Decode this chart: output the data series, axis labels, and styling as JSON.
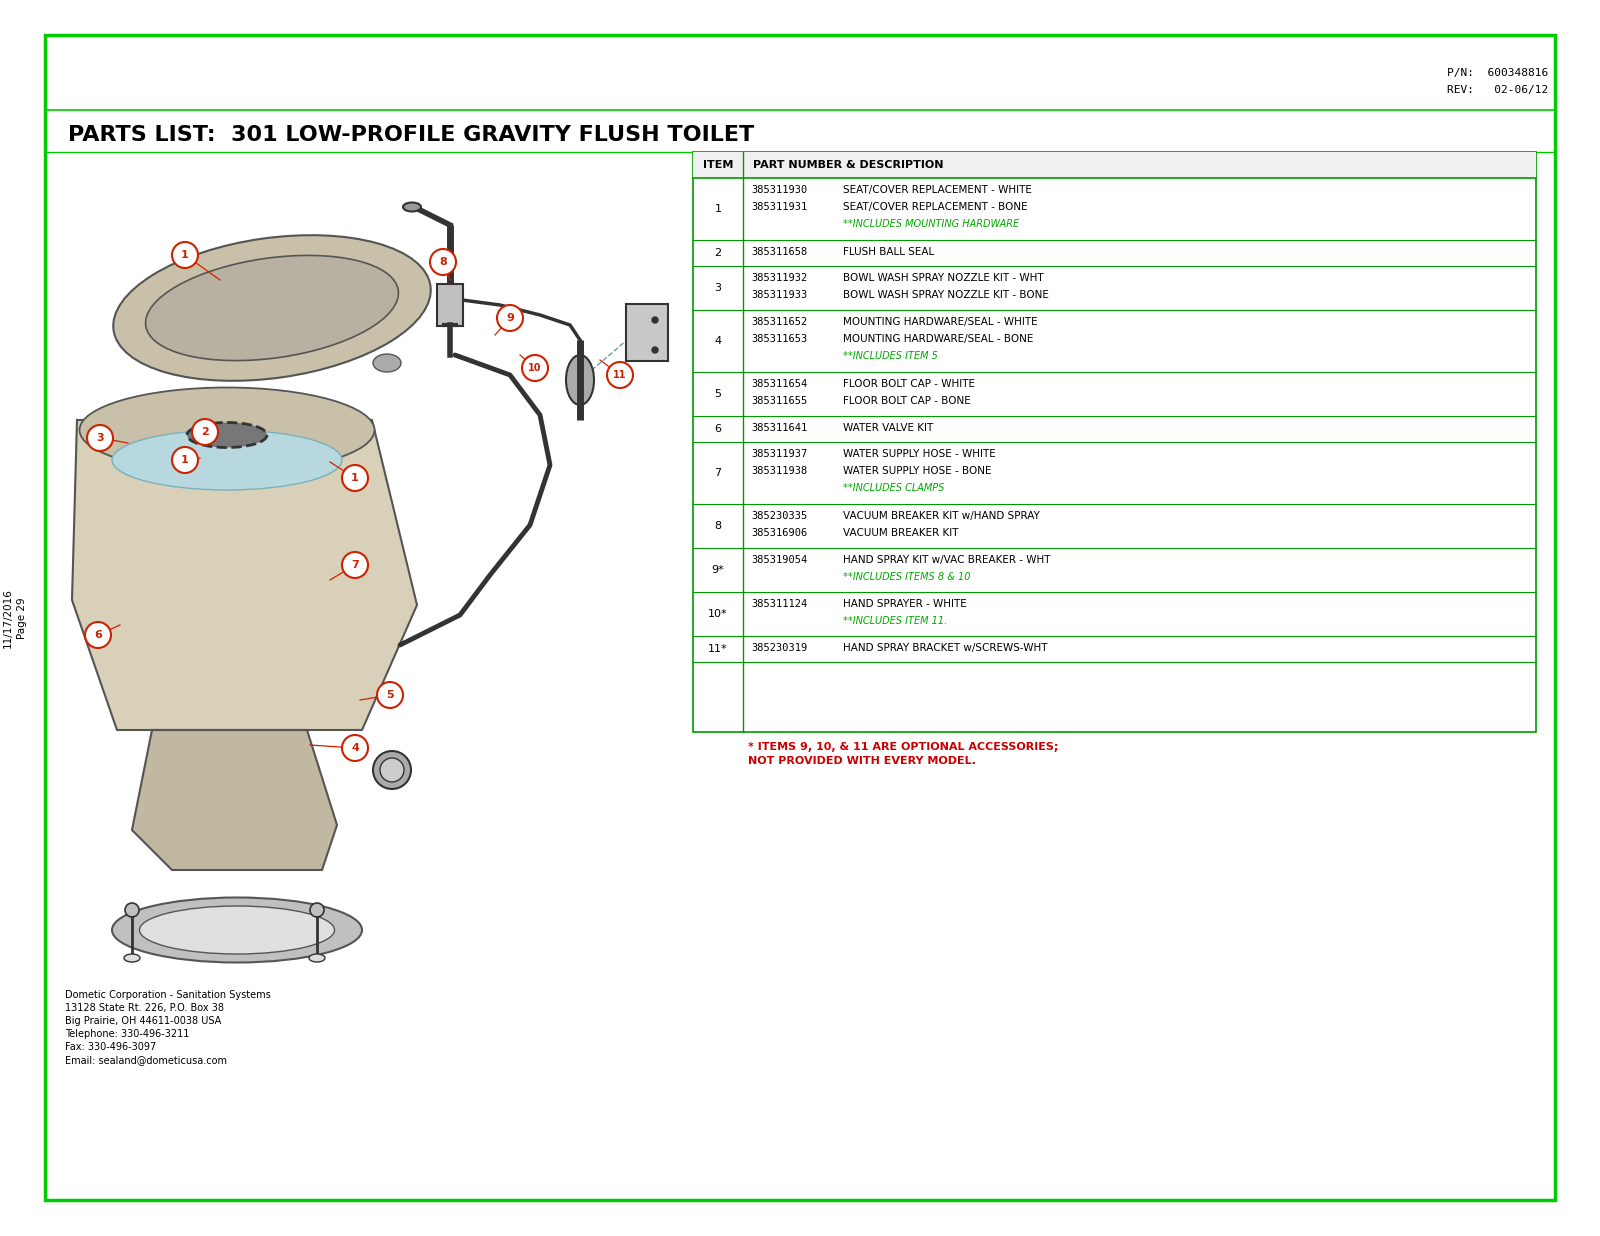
{
  "title": "PARTS LIST:  301 LOW-PROFILE GRAVITY FLUSH TOILET",
  "pn": "P/N:  600348816",
  "rev": "REV:   02-06/12",
  "page_label": "Page 29",
  "date_label": "11/17/2016",
  "company_info": [
    "Dometic Corporation - Sanitation Systems",
    "13128 State Rt. 226, P.O. Box 38",
    "Big Prairie, OH 44611-0038 USA",
    "Telephone: 330-496-3211",
    "Fax: 330-496-3097",
    "Email: sealand@dometicusa.com"
  ],
  "rows": [
    {
      "item": "1",
      "entries": [
        {
          "pn": "385311930",
          "desc": "SEAT/COVER REPLACEMENT - WHITE"
        },
        {
          "pn": "385311931",
          "desc": "SEAT/COVER REPLACEMENT - BONE"
        }
      ],
      "note": "**INCLUDES MOUNTING HARDWARE"
    },
    {
      "item": "2",
      "entries": [
        {
          "pn": "385311658",
          "desc": "FLUSH BALL SEAL"
        }
      ],
      "note": null
    },
    {
      "item": "3",
      "entries": [
        {
          "pn": "385311932",
          "desc": "BOWL WASH SPRAY NOZZLE KIT - WHT"
        },
        {
          "pn": "385311933",
          "desc": "BOWL WASH SPRAY NOZZLE KIT - BONE"
        }
      ],
      "note": null
    },
    {
      "item": "4",
      "entries": [
        {
          "pn": "385311652",
          "desc": "MOUNTING HARDWARE/SEAL - WHITE"
        },
        {
          "pn": "385311653",
          "desc": "MOUNTING HARDWARE/SEAL - BONE"
        }
      ],
      "note": "**INCLUDES ITEM 5"
    },
    {
      "item": "5",
      "entries": [
        {
          "pn": "385311654",
          "desc": "FLOOR BOLT CAP - WHITE"
        },
        {
          "pn": "385311655",
          "desc": "FLOOR BOLT CAP - BONE"
        }
      ],
      "note": null
    },
    {
      "item": "6",
      "entries": [
        {
          "pn": "385311641",
          "desc": "WATER VALVE KIT"
        }
      ],
      "note": null
    },
    {
      "item": "7",
      "entries": [
        {
          "pn": "385311937",
          "desc": "WATER SUPPLY HOSE - WHITE"
        },
        {
          "pn": "385311938",
          "desc": "WATER SUPPLY HOSE - BONE"
        }
      ],
      "note": "**INCLUDES CLAMPS"
    },
    {
      "item": "8",
      "entries": [
        {
          "pn": "385230335",
          "desc": "VACUUM BREAKER KIT w/HAND SPRAY"
        },
        {
          "pn": "385316906",
          "desc": "VACUUM BREAKER KIT"
        }
      ],
      "note": null
    },
    {
      "item": "9*",
      "entries": [
        {
          "pn": "385319054",
          "desc": "HAND SPRAY KIT w/VAC BREAKER - WHT"
        }
      ],
      "note": "**INCLUDES ITEMS 8 & 10"
    },
    {
      "item": "10*",
      "entries": [
        {
          "pn": "385311124",
          "desc": "HAND SPRAYER - WHITE"
        }
      ],
      "note": "**INCLUDES ITEM 11."
    },
    {
      "item": "11*",
      "entries": [
        {
          "pn": "385230319",
          "desc": "HAND SPRAY BRACKET w/SCREWS-WHT"
        }
      ],
      "note": null
    }
  ],
  "footer_note_red": "* ITEMS 9, 10, & 11 ARE OPTIONAL ACCESSORIES;\nNOT PROVIDED WITH EVERY MODEL.",
  "border_color": "#00cc00",
  "table_border_color": "#009900",
  "note_color": "#00aa00",
  "red_color": "#cc0000",
  "callout_color": "#cc2200",
  "bg_color": "#ffffff",
  "text_color": "#000000",
  "diagram_line_color": "#555555",
  "diagram_dark": "#333333",
  "diagram_fill_body": "#d8d0b8",
  "diagram_fill_seat": "#c8c0a8",
  "diagram_fill_water": "#b8d8e0"
}
